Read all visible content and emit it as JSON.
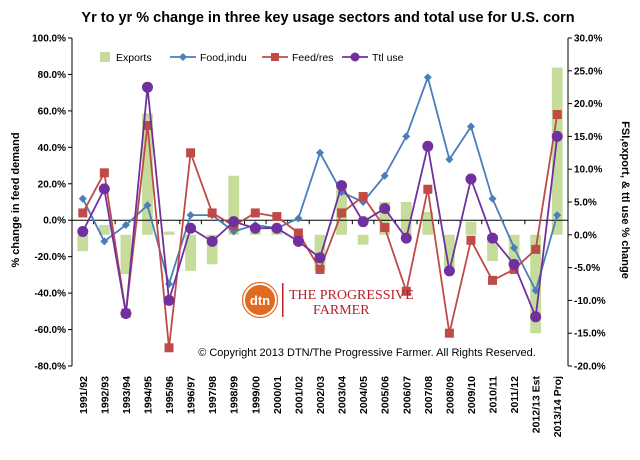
{
  "chart_data": {
    "type": "bar+line",
    "title": "Yr to yr % change in three key usage sectors and total use for U.S. corn",
    "ylabel_left": "% change in feed demand",
    "ylabel_right": "FSI,export, & ttl use % change",
    "ylim_left": [
      -80,
      100
    ],
    "ylim_right": [
      -20,
      30
    ],
    "yticks_left": [
      "100.0%",
      "80.0%",
      "60.0%",
      "40.0%",
      "20.0%",
      "0.0%",
      "-20.0%",
      "-40.0%",
      "-60.0%",
      "-80.0%"
    ],
    "yticks_right": [
      "30.0%",
      "25.0%",
      "20.0%",
      "15.0%",
      "10.0%",
      "5.0%",
      "0.0%",
      "-5.0%",
      "-10.0%",
      "-15.0%",
      "-20.0%"
    ],
    "categories": [
      "1991/92",
      "1992/93",
      "1993/94",
      "1994/95",
      "1995/96",
      "1996/97",
      "1997/98",
      "1998/99",
      "1999/00",
      "2000/01",
      "2001/02",
      "2002/03",
      "2003/04",
      "2004/05",
      "2005/06",
      "2006/07",
      "2007/08",
      "2008/09",
      "2009/10",
      "2010/11",
      "2011/12",
      "2012/13 Est",
      "2013/14 Proj"
    ],
    "legend_position": "top-left",
    "grid": false,
    "series": [
      {
        "name": "Exports",
        "type": "bar",
        "axis": "right",
        "color": "#c5dc9a",
        "values": [
          -2.5,
          1.5,
          -6.0,
          18.5,
          0.5,
          -5.5,
          -4.5,
          9.0,
          0.5,
          1.0,
          -1.0,
          -5.5,
          7.0,
          -1.5,
          5.0,
          5.0,
          3.5,
          -5.0,
          2.0,
          -4.0,
          -4.5,
          -15.0,
          25.5
        ]
      },
      {
        "name": "Food,indu",
        "type": "line",
        "axis": "right",
        "color": "#4a7ebb",
        "marker": "diamond",
        "values": [
          5.5,
          -1.0,
          1.5,
          4.5,
          -7.5,
          3.0,
          3.0,
          0.5,
          1.5,
          1.0,
          2.5,
          12.5,
          6.5,
          5.0,
          9.0,
          15.0,
          24.0,
          11.5,
          16.5,
          5.5,
          -2.0,
          -8.5,
          3.0
        ]
      },
      {
        "name": "Feed/res",
        "type": "line",
        "axis": "left",
        "color": "#be4b48",
        "marker": "square",
        "values": [
          4.0,
          26.0,
          -51.0,
          52.0,
          -70.0,
          37.0,
          4.0,
          -3.0,
          4.0,
          2.0,
          -7.0,
          -27.0,
          4.0,
          13.0,
          -4.0,
          -39.0,
          17.0,
          -62.0,
          -11.0,
          -33.0,
          -27.0,
          -16.0,
          58.0
        ]
      },
      {
        "name": "Ttl use",
        "type": "line",
        "axis": "right",
        "color": "#7030a0",
        "marker": "circle",
        "values": [
          0.5,
          7.0,
          -12.0,
          22.5,
          -10.0,
          1.0,
          -1.0,
          2.0,
          1.0,
          1.0,
          -1.0,
          -3.5,
          7.5,
          2.0,
          4.0,
          -0.5,
          13.5,
          -5.5,
          8.5,
          -0.5,
          -4.5,
          -12.5,
          15.0
        ]
      }
    ]
  },
  "watermark": {
    "logo_text": "dtn",
    "brand_line1": "THE PROGRESSIVE",
    "brand_line2": "FARMER",
    "copyright": "© Copyright 2013 DTN/The Progressive Farmer. All Rights Reserved."
  }
}
